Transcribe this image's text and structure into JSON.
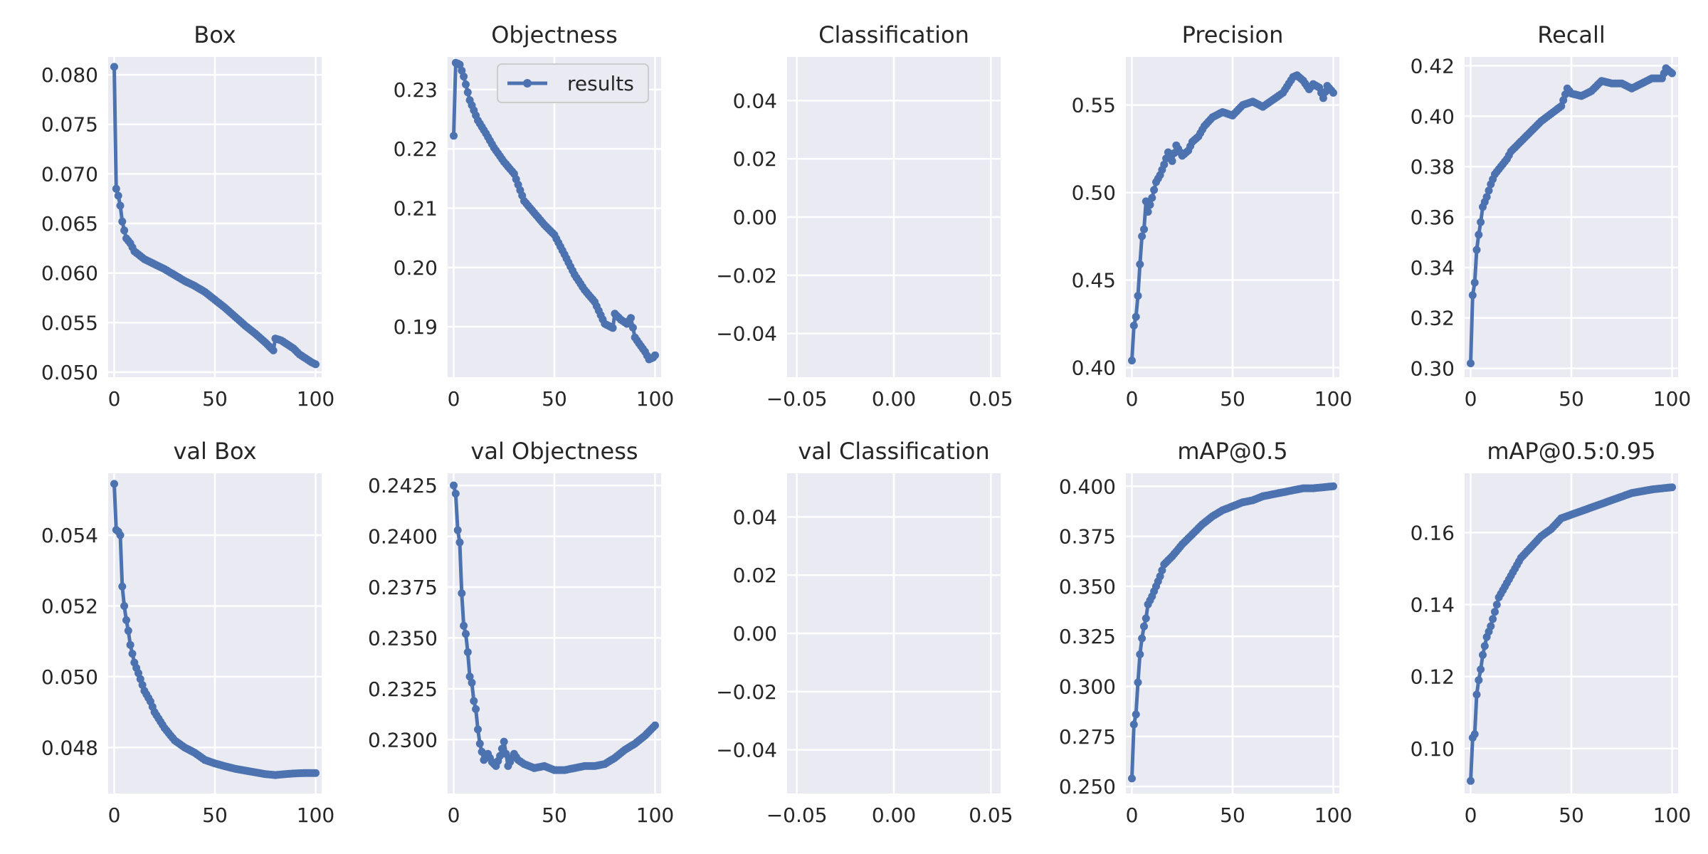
{
  "colors": {
    "plot_bg": "#eaeaf2",
    "grid": "#ffffff",
    "line": "#4c72b0",
    "text": "#262626",
    "legend_bg": "#eaeaf2",
    "legend_border": "#cccccc"
  },
  "chart_data": [
    {
      "type": "line",
      "title": "Box",
      "xlim": [
        -3,
        103
      ],
      "ylim": [
        0.0495,
        0.0818
      ],
      "xticks": [
        0,
        50,
        100
      ],
      "xtick_labels": [
        "0",
        "50",
        "100"
      ],
      "yticks": [
        0.05,
        0.055,
        0.06,
        0.065,
        0.07,
        0.075,
        0.08
      ],
      "ytick_labels": [
        "0.050",
        "0.055",
        "0.060",
        "0.065",
        "0.070",
        "0.075",
        "0.080"
      ],
      "key_points": [
        [
          0,
          0.0808
        ],
        [
          1,
          0.0685
        ],
        [
          2,
          0.0678
        ],
        [
          3,
          0.0668
        ],
        [
          4,
          0.0652
        ],
        [
          5,
          0.0643
        ],
        [
          6,
          0.0635
        ],
        [
          8,
          0.063
        ],
        [
          10,
          0.0622
        ],
        [
          15,
          0.0614
        ],
        [
          20,
          0.0609
        ],
        [
          25,
          0.0604
        ],
        [
          30,
          0.0598
        ],
        [
          35,
          0.0592
        ],
        [
          40,
          0.0587
        ],
        [
          45,
          0.0581
        ],
        [
          50,
          0.0573
        ],
        [
          55,
          0.0565
        ],
        [
          60,
          0.0556
        ],
        [
          65,
          0.0547
        ],
        [
          70,
          0.0539
        ],
        [
          75,
          0.053
        ],
        [
          79,
          0.0522
        ],
        [
          80,
          0.0534
        ],
        [
          83,
          0.0532
        ],
        [
          86,
          0.0528
        ],
        [
          89,
          0.0524
        ],
        [
          92,
          0.0518
        ],
        [
          95,
          0.0514
        ],
        [
          98,
          0.051
        ],
        [
          100,
          0.0508
        ]
      ]
    },
    {
      "type": "line",
      "title": "Objectness",
      "series": [
        {
          "name": "results"
        }
      ],
      "legend": "top-right",
      "xlim": [
        -3,
        103
      ],
      "ylim": [
        0.1815,
        0.2355
      ],
      "xticks": [
        0,
        50,
        100
      ],
      "xtick_labels": [
        "0",
        "50",
        "100"
      ],
      "yticks": [
        0.19,
        0.2,
        0.21,
        0.22,
        0.23
      ],
      "ytick_labels": [
        "0.19",
        "0.20",
        "0.21",
        "0.22",
        "0.23"
      ],
      "key_points": [
        [
          0,
          0.2222
        ],
        [
          1,
          0.2345
        ],
        [
          2,
          0.2344
        ],
        [
          3,
          0.2342
        ],
        [
          5,
          0.2322
        ],
        [
          8,
          0.2282
        ],
        [
          12,
          0.2248
        ],
        [
          16,
          0.2226
        ],
        [
          20,
          0.2202
        ],
        [
          25,
          0.2178
        ],
        [
          30,
          0.2158
        ],
        [
          35,
          0.2112
        ],
        [
          40,
          0.2092
        ],
        [
          45,
          0.2072
        ],
        [
          50,
          0.2055
        ],
        [
          55,
          0.2022
        ],
        [
          60,
          0.1988
        ],
        [
          65,
          0.1962
        ],
        [
          70,
          0.1942
        ],
        [
          75,
          0.1905
        ],
        [
          79,
          0.1898
        ],
        [
          80,
          0.1922
        ],
        [
          83,
          0.1912
        ],
        [
          86,
          0.1905
        ],
        [
          88,
          0.1915
        ],
        [
          90,
          0.1882
        ],
        [
          92,
          0.1872
        ],
        [
          95,
          0.1858
        ],
        [
          97,
          0.1845
        ],
        [
          99,
          0.1848
        ],
        [
          100,
          0.1852
        ]
      ]
    },
    {
      "type": "line",
      "title": "Classification",
      "xlim": [
        -0.055,
        0.055
      ],
      "ylim": [
        -0.055,
        0.055
      ],
      "xticks": [
        -0.05,
        0.0,
        0.05
      ],
      "xtick_labels": [
        "−0.05",
        "0.00",
        "0.05"
      ],
      "yticks": [
        -0.04,
        -0.02,
        0.0,
        0.02,
        0.04
      ],
      "ytick_labels": [
        "−0.04",
        "−0.02",
        "0.00",
        "0.02",
        "0.04"
      ],
      "key_points": []
    },
    {
      "type": "line",
      "title": "Precision",
      "xlim": [
        -3,
        103
      ],
      "ylim": [
        0.3945,
        0.5775
      ],
      "xticks": [
        0,
        50,
        100
      ],
      "xtick_labels": [
        "0",
        "50",
        "100"
      ],
      "yticks": [
        0.4,
        0.45,
        0.5,
        0.55
      ],
      "ytick_labels": [
        "0.40",
        "0.45",
        "0.50",
        "0.55"
      ],
      "key_points": [
        [
          0,
          0.404
        ],
        [
          1,
          0.424
        ],
        [
          2,
          0.429
        ],
        [
          3,
          0.441
        ],
        [
          4,
          0.459
        ],
        [
          5,
          0.475
        ],
        [
          6,
          0.479
        ],
        [
          7,
          0.495
        ],
        [
          8,
          0.489
        ],
        [
          10,
          0.497
        ],
        [
          12,
          0.506
        ],
        [
          14,
          0.51
        ],
        [
          16,
          0.516
        ],
        [
          18,
          0.523
        ],
        [
          20,
          0.518
        ],
        [
          22,
          0.527
        ],
        [
          25,
          0.521
        ],
        [
          28,
          0.524
        ],
        [
          30,
          0.529
        ],
        [
          33,
          0.532
        ],
        [
          36,
          0.538
        ],
        [
          40,
          0.543
        ],
        [
          45,
          0.546
        ],
        [
          50,
          0.544
        ],
        [
          55,
          0.55
        ],
        [
          60,
          0.552
        ],
        [
          65,
          0.549
        ],
        [
          70,
          0.553
        ],
        [
          75,
          0.557
        ],
        [
          80,
          0.566
        ],
        [
          82,
          0.567
        ],
        [
          85,
          0.564
        ],
        [
          88,
          0.559
        ],
        [
          90,
          0.562
        ],
        [
          93,
          0.56
        ],
        [
          95,
          0.554
        ],
        [
          97,
          0.561
        ],
        [
          100,
          0.557
        ]
      ]
    },
    {
      "type": "line",
      "title": "Recall",
      "xlim": [
        -3,
        103
      ],
      "ylim": [
        0.2965,
        0.4235
      ],
      "xticks": [
        0,
        50,
        100
      ],
      "xtick_labels": [
        "0",
        "50",
        "100"
      ],
      "yticks": [
        0.3,
        0.32,
        0.34,
        0.36,
        0.38,
        0.4,
        0.42
      ],
      "ytick_labels": [
        "0.30",
        "0.32",
        "0.34",
        "0.36",
        "0.38",
        "0.40",
        "0.42"
      ],
      "key_points": [
        [
          0,
          0.302
        ],
        [
          1,
          0.329
        ],
        [
          2,
          0.334
        ],
        [
          3,
          0.347
        ],
        [
          4,
          0.353
        ],
        [
          5,
          0.358
        ],
        [
          6,
          0.364
        ],
        [
          8,
          0.368
        ],
        [
          10,
          0.373
        ],
        [
          12,
          0.377
        ],
        [
          15,
          0.38
        ],
        [
          18,
          0.383
        ],
        [
          20,
          0.386
        ],
        [
          25,
          0.39
        ],
        [
          30,
          0.394
        ],
        [
          35,
          0.398
        ],
        [
          40,
          0.401
        ],
        [
          45,
          0.404
        ],
        [
          48,
          0.411
        ],
        [
          50,
          0.409
        ],
        [
          55,
          0.408
        ],
        [
          60,
          0.41
        ],
        [
          65,
          0.414
        ],
        [
          70,
          0.413
        ],
        [
          75,
          0.413
        ],
        [
          80,
          0.411
        ],
        [
          85,
          0.413
        ],
        [
          90,
          0.415
        ],
        [
          95,
          0.415
        ],
        [
          97,
          0.419
        ],
        [
          100,
          0.417
        ]
      ]
    },
    {
      "type": "line",
      "title": "val Box",
      "xlim": [
        -3,
        103
      ],
      "ylim": [
        0.0467,
        0.05575
      ],
      "xticks": [
        0,
        50,
        100
      ],
      "xtick_labels": [
        "0",
        "50",
        "100"
      ],
      "yticks": [
        0.048,
        0.05,
        0.052,
        0.054
      ],
      "ytick_labels": [
        "0.048",
        "0.050",
        "0.052",
        "0.054"
      ],
      "key_points": [
        [
          0,
          0.05545
        ],
        [
          1,
          0.05415
        ],
        [
          2,
          0.0541
        ],
        [
          3,
          0.054
        ],
        [
          4,
          0.05255
        ],
        [
          5,
          0.052
        ],
        [
          6,
          0.0516
        ],
        [
          7,
          0.0513
        ],
        [
          8,
          0.0509
        ],
        [
          10,
          0.0504
        ],
        [
          12,
          0.0501
        ],
        [
          15,
          0.0496
        ],
        [
          18,
          0.0493
        ],
        [
          20,
          0.049
        ],
        [
          25,
          0.04855
        ],
        [
          30,
          0.0482
        ],
        [
          35,
          0.048
        ],
        [
          40,
          0.04785
        ],
        [
          45,
          0.04765
        ],
        [
          50,
          0.04755
        ],
        [
          55,
          0.04747
        ],
        [
          60,
          0.0474
        ],
        [
          65,
          0.04735
        ],
        [
          70,
          0.0473
        ],
        [
          75,
          0.04725
        ],
        [
          80,
          0.04722
        ],
        [
          85,
          0.04725
        ],
        [
          90,
          0.04727
        ],
        [
          95,
          0.04728
        ],
        [
          100,
          0.04728
        ]
      ]
    },
    {
      "type": "line",
      "title": "val Objectness",
      "xlim": [
        -3,
        103
      ],
      "ylim": [
        0.22735,
        0.2431
      ],
      "xticks": [
        0,
        50,
        100
      ],
      "xtick_labels": [
        "0",
        "50",
        "100"
      ],
      "yticks": [
        0.23,
        0.2325,
        0.235,
        0.2375,
        0.24,
        0.2425
      ],
      "ytick_labels": [
        "0.2300",
        "0.2325",
        "0.2350",
        "0.2375",
        "0.2400",
        "0.2425"
      ],
      "key_points": [
        [
          0,
          0.2425
        ],
        [
          1,
          0.2421
        ],
        [
          2,
          0.2403
        ],
        [
          3,
          0.2397
        ],
        [
          4,
          0.2372
        ],
        [
          5,
          0.2356
        ],
        [
          6,
          0.2352
        ],
        [
          7,
          0.2343
        ],
        [
          8,
          0.2331
        ],
        [
          9,
          0.2328
        ],
        [
          10,
          0.2319
        ],
        [
          11,
          0.2315
        ],
        [
          12,
          0.2305
        ],
        [
          13,
          0.2298
        ],
        [
          15,
          0.229
        ],
        [
          17,
          0.2293
        ],
        [
          19,
          0.2289
        ],
        [
          21,
          0.2287
        ],
        [
          23,
          0.2292
        ],
        [
          25,
          0.2299
        ],
        [
          27,
          0.2287
        ],
        [
          30,
          0.2293
        ],
        [
          32,
          0.229
        ],
        [
          35,
          0.2288
        ],
        [
          40,
          0.2286
        ],
        [
          45,
          0.2287
        ],
        [
          50,
          0.2285
        ],
        [
          55,
          0.2285
        ],
        [
          60,
          0.2286
        ],
        [
          65,
          0.2287
        ],
        [
          70,
          0.2287
        ],
        [
          75,
          0.2288
        ],
        [
          80,
          0.2291
        ],
        [
          85,
          0.2295
        ],
        [
          90,
          0.2298
        ],
        [
          95,
          0.2302
        ],
        [
          100,
          0.2307
        ]
      ]
    },
    {
      "type": "line",
      "title": "val Classification",
      "xlim": [
        -0.055,
        0.055
      ],
      "ylim": [
        -0.055,
        0.055
      ],
      "xticks": [
        -0.05,
        0.0,
        0.05
      ],
      "xtick_labels": [
        "−0.05",
        "0.00",
        "0.05"
      ],
      "yticks": [
        -0.04,
        -0.02,
        0.0,
        0.02,
        0.04
      ],
      "ytick_labels": [
        "−0.04",
        "−0.02",
        "0.00",
        "0.02",
        "0.04"
      ],
      "key_points": []
    },
    {
      "type": "line",
      "title": "mAP@0.5",
      "xlim": [
        -3,
        103
      ],
      "ylim": [
        0.2465,
        0.4065
      ],
      "xticks": [
        0,
        50,
        100
      ],
      "xtick_labels": [
        "0",
        "50",
        "100"
      ],
      "yticks": [
        0.25,
        0.275,
        0.3,
        0.325,
        0.35,
        0.375,
        0.4
      ],
      "ytick_labels": [
        "0.250",
        "0.275",
        "0.300",
        "0.325",
        "0.350",
        "0.375",
        "0.400"
      ],
      "key_points": [
        [
          0,
          0.254
        ],
        [
          1,
          0.281
        ],
        [
          2,
          0.286
        ],
        [
          3,
          0.302
        ],
        [
          4,
          0.316
        ],
        [
          5,
          0.324
        ],
        [
          6,
          0.33
        ],
        [
          7,
          0.334
        ],
        [
          8,
          0.341
        ],
        [
          10,
          0.345
        ],
        [
          12,
          0.35
        ],
        [
          14,
          0.355
        ],
        [
          16,
          0.361
        ],
        [
          18,
          0.363
        ],
        [
          20,
          0.365
        ],
        [
          25,
          0.371
        ],
        [
          30,
          0.376
        ],
        [
          35,
          0.381
        ],
        [
          40,
          0.385
        ],
        [
          45,
          0.388
        ],
        [
          50,
          0.39
        ],
        [
          55,
          0.392
        ],
        [
          60,
          0.393
        ],
        [
          65,
          0.395
        ],
        [
          70,
          0.396
        ],
        [
          75,
          0.397
        ],
        [
          80,
          0.398
        ],
        [
          85,
          0.399
        ],
        [
          90,
          0.399
        ],
        [
          95,
          0.3995
        ],
        [
          100,
          0.4
        ]
      ]
    },
    {
      "type": "line",
      "title": "mAP@0.5:0.95",
      "xlim": [
        -3,
        103
      ],
      "ylim": [
        0.0875,
        0.1765
      ],
      "xticks": [
        0,
        50,
        100
      ],
      "xtick_labels": [
        "0",
        "50",
        "100"
      ],
      "yticks": [
        0.1,
        0.12,
        0.14,
        0.16
      ],
      "ytick_labels": [
        "0.10",
        "0.12",
        "0.14",
        "0.16"
      ],
      "key_points": [
        [
          0,
          0.091
        ],
        [
          1,
          0.103
        ],
        [
          2,
          0.104
        ],
        [
          3,
          0.115
        ],
        [
          4,
          0.119
        ],
        [
          5,
          0.122
        ],
        [
          6,
          0.126
        ],
        [
          8,
          0.131
        ],
        [
          10,
          0.134
        ],
        [
          12,
          0.138
        ],
        [
          14,
          0.142
        ],
        [
          16,
          0.144
        ],
        [
          18,
          0.146
        ],
        [
          20,
          0.148
        ],
        [
          25,
          0.153
        ],
        [
          30,
          0.156
        ],
        [
          35,
          0.159
        ],
        [
          40,
          0.161
        ],
        [
          45,
          0.164
        ],
        [
          50,
          0.165
        ],
        [
          55,
          0.166
        ],
        [
          60,
          0.167
        ],
        [
          65,
          0.168
        ],
        [
          70,
          0.169
        ],
        [
          75,
          0.17
        ],
        [
          80,
          0.171
        ],
        [
          85,
          0.1715
        ],
        [
          90,
          0.172
        ],
        [
          95,
          0.1723
        ],
        [
          100,
          0.1726
        ]
      ]
    }
  ]
}
